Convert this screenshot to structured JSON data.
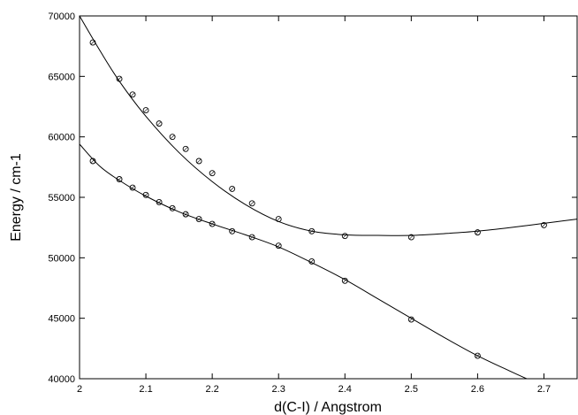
{
  "chart_data": {
    "type": "scatter",
    "xlabel": "d(C-I) / Angstrom",
    "ylabel": "Energy / cm-1",
    "xlim": [
      2.0,
      2.75
    ],
    "ylim": [
      40000,
      70000
    ],
    "xticks": [
      "2",
      "2.1",
      "2.2",
      "2.3",
      "2.4",
      "2.5",
      "2.6",
      "2.7"
    ],
    "xtick_values": [
      2.0,
      2.1,
      2.2,
      2.3,
      2.4,
      2.5,
      2.6,
      2.7
    ],
    "yticks": [
      "40000",
      "45000",
      "50000",
      "55000",
      "60000",
      "65000",
      "70000"
    ],
    "ytick_values": [
      40000,
      45000,
      50000,
      55000,
      60000,
      65000,
      70000
    ],
    "grid": false,
    "series": [
      {
        "points": {
          "x": [
            2.02,
            2.06,
            2.08,
            2.1,
            2.12,
            2.14,
            2.16,
            2.18,
            2.2,
            2.23,
            2.26,
            2.3,
            2.35,
            2.4,
            2.5,
            2.6,
            2.7
          ],
          "y": [
            67800,
            64800,
            63500,
            62200,
            61100,
            60000,
            59000,
            58000,
            57000,
            55700,
            54500,
            53200,
            52200,
            51800,
            51700,
            52100,
            52700
          ]
        },
        "curve": {
          "x": [
            2.0,
            2.03,
            2.06,
            2.1,
            2.15,
            2.2,
            2.25,
            2.3,
            2.35,
            2.4,
            2.45,
            2.5,
            2.55,
            2.6,
            2.65,
            2.7,
            2.75
          ],
          "y": [
            70000,
            67200,
            64600,
            61700,
            58700,
            56300,
            54400,
            53000,
            52200,
            51900,
            51850,
            51850,
            52000,
            52200,
            52500,
            52850,
            53200
          ]
        }
      },
      {
        "points": {
          "x": [
            2.02,
            2.06,
            2.08,
            2.1,
            2.12,
            2.14,
            2.16,
            2.18,
            2.2,
            2.23,
            2.26,
            2.3,
            2.35,
            2.4,
            2.5,
            2.6
          ],
          "y": [
            58000,
            56500,
            55800,
            55200,
            54600,
            54100,
            53600,
            53200,
            52800,
            52200,
            51700,
            51000,
            49700,
            48100,
            44900,
            41900
          ]
        },
        "curve": {
          "x": [
            2.0,
            2.03,
            2.06,
            2.1,
            2.15,
            2.2,
            2.25,
            2.3,
            2.35,
            2.4,
            2.45,
            2.5,
            2.55,
            2.6,
            2.65,
            2.674
          ],
          "y": [
            59400,
            57600,
            56400,
            55100,
            53800,
            52800,
            51900,
            50900,
            49600,
            48200,
            46600,
            45000,
            43400,
            41900,
            40600,
            40000
          ]
        }
      }
    ]
  }
}
